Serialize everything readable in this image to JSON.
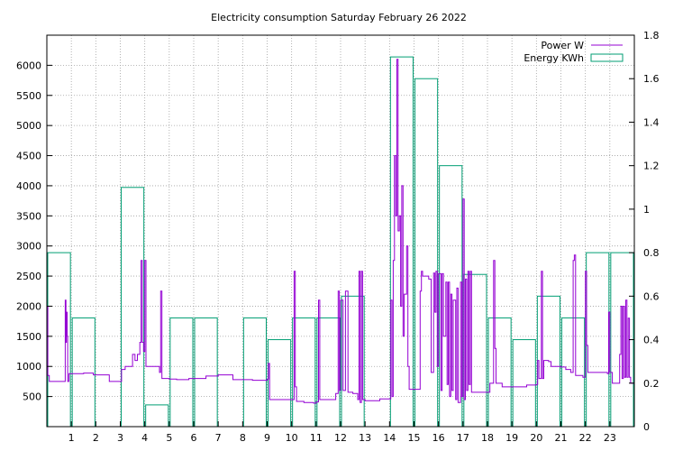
{
  "chart_data": {
    "type": "bar+line",
    "title": "Electricity consumption Saturday February 26 2022",
    "xlabel": "",
    "ylabel": "",
    "y2label": "",
    "xlim": [
      0,
      24
    ],
    "ylim": [
      0,
      6500
    ],
    "y2lim": [
      0,
      1.8
    ],
    "grid": true,
    "legend_position": "top-right",
    "x_ticks": [
      1,
      2,
      3,
      4,
      5,
      6,
      7,
      8,
      9,
      10,
      11,
      12,
      13,
      14,
      15,
      16,
      17,
      18,
      19,
      20,
      21,
      22,
      23
    ],
    "y_ticks": [
      500,
      1000,
      1500,
      2000,
      2500,
      3000,
      3500,
      4000,
      4500,
      5000,
      5500,
      6000
    ],
    "y2_ticks": [
      0,
      0.2,
      0.4,
      0.6,
      0.8,
      1,
      1.2,
      1.4,
      1.6,
      1.8
    ],
    "colors": {
      "power": "#9400d3",
      "energy": "#009e73",
      "grid": "#a0a0a0"
    },
    "series": [
      {
        "name": "Energy KWh",
        "axis": "y2",
        "kind": "bars",
        "hours": [
          0,
          1,
          2,
          3,
          4,
          5,
          6,
          7,
          8,
          9,
          10,
          11,
          12,
          13,
          14,
          15,
          16,
          17,
          18,
          19,
          20,
          21,
          22,
          23
        ],
        "values": [
          0.8,
          0.5,
          0,
          1.1,
          0.1,
          0.5,
          0.5,
          0,
          0.5,
          0.4,
          0.5,
          0.5,
          0.6,
          0,
          1.7,
          1.6,
          1.2,
          0.7,
          0.5,
          0.4,
          0.6,
          0.5,
          0.8,
          0.8
        ]
      },
      {
        "name": "Power W",
        "axis": "y",
        "kind": "step",
        "points": [
          [
            0,
            2000
          ],
          [
            0.04,
            850
          ],
          [
            0.1,
            750
          ],
          [
            0.7,
            750
          ],
          [
            0.75,
            2100
          ],
          [
            0.78,
            1400
          ],
          [
            0.8,
            1900
          ],
          [
            0.83,
            1500
          ],
          [
            0.85,
            750
          ],
          [
            0.9,
            880
          ],
          [
            1.0,
            880
          ],
          [
            1.5,
            890
          ],
          [
            1.9,
            860
          ],
          [
            2.5,
            860
          ],
          [
            2.55,
            750
          ],
          [
            3.0,
            750
          ],
          [
            3.05,
            950
          ],
          [
            3.2,
            1000
          ],
          [
            3.4,
            1000
          ],
          [
            3.5,
            1200
          ],
          [
            3.6,
            1100
          ],
          [
            3.7,
            1200
          ],
          [
            3.8,
            1400
          ],
          [
            3.85,
            2760
          ],
          [
            3.9,
            1400
          ],
          [
            3.95,
            1250
          ],
          [
            4.0,
            2760
          ],
          [
            4.05,
            1000
          ],
          [
            4.5,
            1000
          ],
          [
            4.6,
            900
          ],
          [
            4.65,
            2250
          ],
          [
            4.7,
            800
          ],
          [
            5.0,
            790
          ],
          [
            5.3,
            780
          ],
          [
            5.8,
            800
          ],
          [
            6.3,
            800
          ],
          [
            6.5,
            840
          ],
          [
            7.0,
            860
          ],
          [
            7.5,
            860
          ],
          [
            7.6,
            780
          ],
          [
            8.0,
            780
          ],
          [
            8.4,
            770
          ],
          [
            8.9,
            770
          ],
          [
            9.0,
            790
          ],
          [
            9.05,
            1050
          ],
          [
            9.1,
            450
          ],
          [
            9.8,
            450
          ],
          [
            10.0,
            450
          ],
          [
            10.1,
            2580
          ],
          [
            10.15,
            660
          ],
          [
            10.2,
            420
          ],
          [
            10.5,
            400
          ],
          [
            10.9,
            390
          ],
          [
            11.0,
            410
          ],
          [
            11.1,
            2100
          ],
          [
            11.15,
            450
          ],
          [
            11.4,
            450
          ],
          [
            11.8,
            550
          ],
          [
            11.9,
            2250
          ],
          [
            11.95,
            600
          ],
          [
            12.0,
            2100
          ],
          [
            12.1,
            600
          ],
          [
            12.2,
            2250
          ],
          [
            12.3,
            570
          ],
          [
            12.5,
            550
          ],
          [
            12.7,
            450
          ],
          [
            12.75,
            2580
          ],
          [
            12.8,
            400
          ],
          [
            12.85,
            2580
          ],
          [
            12.9,
            450
          ],
          [
            13.0,
            430
          ],
          [
            13.5,
            430
          ],
          [
            13.6,
            460
          ],
          [
            14.0,
            460
          ],
          [
            14.05,
            2100
          ],
          [
            14.1,
            500
          ],
          [
            14.15,
            2760
          ],
          [
            14.2,
            4500
          ],
          [
            14.25,
            3500
          ],
          [
            14.3,
            6100
          ],
          [
            14.35,
            3250
          ],
          [
            14.4,
            3500
          ],
          [
            14.45,
            2000
          ],
          [
            14.5,
            4000
          ],
          [
            14.55,
            1500
          ],
          [
            14.6,
            2200
          ],
          [
            14.7,
            3000
          ],
          [
            14.75,
            1000
          ],
          [
            14.8,
            620
          ],
          [
            15.0,
            620
          ],
          [
            15.2,
            620
          ],
          [
            15.25,
            2250
          ],
          [
            15.3,
            2580
          ],
          [
            15.35,
            2500
          ],
          [
            15.5,
            2500
          ],
          [
            15.6,
            2450
          ],
          [
            15.7,
            900
          ],
          [
            15.8,
            2550
          ],
          [
            15.85,
            1900
          ],
          [
            15.9,
            2580
          ],
          [
            15.95,
            1000
          ],
          [
            16.0,
            2540
          ],
          [
            16.1,
            600
          ],
          [
            16.15,
            2540
          ],
          [
            16.2,
            1500
          ],
          [
            16.3,
            2400
          ],
          [
            16.35,
            700
          ],
          [
            16.4,
            2400
          ],
          [
            16.45,
            500
          ],
          [
            16.5,
            2200
          ],
          [
            16.55,
            600
          ],
          [
            16.6,
            2100
          ],
          [
            16.7,
            450
          ],
          [
            16.75,
            2300
          ],
          [
            16.8,
            400
          ],
          [
            16.9,
            2400
          ],
          [
            16.95,
            500
          ],
          [
            17.0,
            3780
          ],
          [
            17.05,
            450
          ],
          [
            17.1,
            2450
          ],
          [
            17.15,
            600
          ],
          [
            17.2,
            2580
          ],
          [
            17.25,
            700
          ],
          [
            17.3,
            2580
          ],
          [
            17.35,
            570
          ],
          [
            17.5,
            570
          ],
          [
            17.9,
            570
          ],
          [
            18.0,
            570
          ],
          [
            18.1,
            720
          ],
          [
            18.2,
            720
          ],
          [
            18.25,
            2760
          ],
          [
            18.3,
            1300
          ],
          [
            18.35,
            720
          ],
          [
            18.6,
            660
          ],
          [
            19.0,
            660
          ],
          [
            19.4,
            660
          ],
          [
            19.6,
            690
          ],
          [
            20.0,
            700
          ],
          [
            20.05,
            1100
          ],
          [
            20.1,
            800
          ],
          [
            20.2,
            2580
          ],
          [
            20.25,
            800
          ],
          [
            20.3,
            1100
          ],
          [
            20.5,
            1080
          ],
          [
            20.6,
            1000
          ],
          [
            21.0,
            990
          ],
          [
            21.2,
            950
          ],
          [
            21.4,
            900
          ],
          [
            21.5,
            2760
          ],
          [
            21.55,
            2850
          ],
          [
            21.6,
            850
          ],
          [
            21.9,
            820
          ],
          [
            22.0,
            2580
          ],
          [
            22.05,
            1350
          ],
          [
            22.1,
            900
          ],
          [
            22.5,
            900
          ],
          [
            22.9,
            880
          ],
          [
            22.95,
            1900
          ],
          [
            23.0,
            900
          ],
          [
            23.1,
            720
          ],
          [
            23.3,
            720
          ],
          [
            23.4,
            1200
          ],
          [
            23.45,
            2000
          ],
          [
            23.5,
            800
          ],
          [
            23.55,
            2000
          ],
          [
            23.6,
            820
          ],
          [
            23.65,
            2100
          ],
          [
            23.7,
            820
          ],
          [
            23.75,
            1800
          ],
          [
            23.8,
            820
          ],
          [
            23.85,
            720
          ],
          [
            23.95,
            720
          ],
          [
            24.0,
            520
          ]
        ]
      }
    ]
  }
}
